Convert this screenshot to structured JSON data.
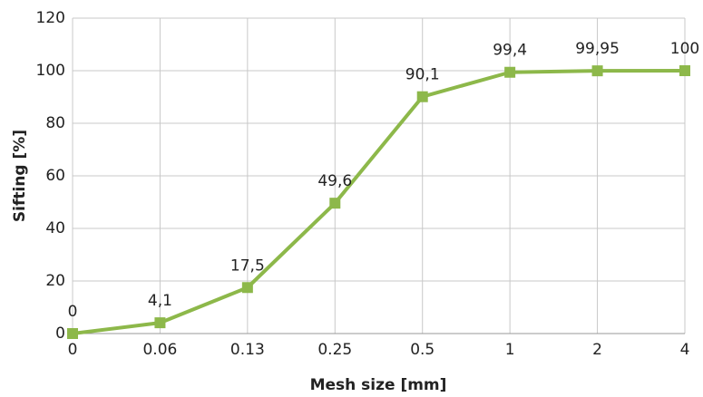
{
  "chart_data": {
    "type": "line",
    "x_label": "Mesh size [mm]",
    "y_label": "Sifting [%]",
    "categories": [
      "0",
      "0.06",
      "0.13",
      "0.25",
      "0.5",
      "1",
      "2",
      "4"
    ],
    "series": [
      {
        "color": "#8db84a",
        "values": [
          0,
          4.1,
          17.5,
          49.6,
          90.1,
          99.4,
          99.95,
          100
        ],
        "value_labels": [
          "0",
          "4,1",
          "17,5",
          "49,6",
          "90,1",
          "99,4",
          "99,95",
          "100"
        ]
      }
    ],
    "ylim": [
      0,
      120
    ],
    "yticks": [
      0,
      20,
      40,
      60,
      80,
      100,
      120
    ],
    "grid": true
  }
}
